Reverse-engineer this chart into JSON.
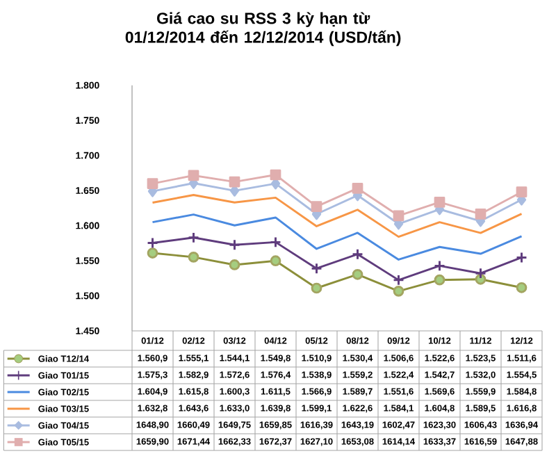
{
  "chart_data": {
    "type": "line",
    "title": "Giá cao su RSS 3 kỳ hạn từ 01/12/2014 đến 12/12/2014 (USD/tấn)",
    "categories": [
      "01/12",
      "02/12",
      "03/12",
      "04/12",
      "05/12",
      "08/12",
      "09/12",
      "10/12",
      "11/12",
      "12/12"
    ],
    "ylim": [
      1450,
      1800
    ],
    "yticks": [
      {
        "value": 1450,
        "label": "1.450"
      },
      {
        "value": 1500,
        "label": "1.500"
      },
      {
        "value": 1550,
        "label": "1.550"
      },
      {
        "value": 1600,
        "label": "1.600"
      },
      {
        "value": 1650,
        "label": "1.650"
      },
      {
        "value": 1700,
        "label": "1.700"
      },
      {
        "value": 1750,
        "label": "1.750"
      },
      {
        "value": 1800,
        "label": "1.800"
      }
    ],
    "legend": "bottom",
    "series": [
      {
        "name": "Giao T12/14",
        "color": "#8c8f3a",
        "marker": "circle",
        "values": [
          1560.9,
          1555.1,
          1544.1,
          1549.8,
          1510.9,
          1530.4,
          1506.6,
          1522.6,
          1523.5,
          1511.6
        ],
        "value_labels": [
          "1.560,9",
          "1.555,1",
          "1.544,1",
          "1.549,8",
          "1.510,9",
          "1.530,4",
          "1.506,6",
          "1.522,6",
          "1.523,5",
          "1.511,6"
        ]
      },
      {
        "name": "Giao T01/15",
        "color": "#5f3c7d",
        "marker": "cross",
        "values": [
          1575.3,
          1582.9,
          1572.6,
          1576.4,
          1538.9,
          1559.2,
          1522.4,
          1542.7,
          1532.0,
          1554.5
        ],
        "value_labels": [
          "1.575,3",
          "1.582,9",
          "1.572,6",
          "1.576,4",
          "1.538,9",
          "1.559,2",
          "1.522,4",
          "1.542,7",
          "1.532,0",
          "1.554,5"
        ]
      },
      {
        "name": "Giao T02/15",
        "color": "#4a8ae0",
        "marker": "none",
        "values": [
          1604.9,
          1615.8,
          1600.3,
          1611.5,
          1566.9,
          1589.7,
          1551.6,
          1569.6,
          1559.9,
          1584.8
        ],
        "value_labels": [
          "1.604,9",
          "1.615,8",
          "1.600,3",
          "1.611,5",
          "1.566,9",
          "1.589,7",
          "1.551,6",
          "1.569,6",
          "1.559,9",
          "1.584,8"
        ]
      },
      {
        "name": "Giao T03/15",
        "color": "#f79646",
        "marker": "none",
        "values": [
          1632.8,
          1643.6,
          1633.0,
          1639.8,
          1599.1,
          1622.6,
          1584.1,
          1604.8,
          1589.5,
          1616.8
        ],
        "value_labels": [
          "1.632,8",
          "1.643,6",
          "1.633,0",
          "1.639,8",
          "1.599,1",
          "1.622,6",
          "1.584,1",
          "1.604,8",
          "1.589,5",
          "1.616,8"
        ]
      },
      {
        "name": "Giao T04/15",
        "color": "#a9bce0",
        "marker": "diamond",
        "values": [
          1648.9,
          1660.49,
          1649.75,
          1659.85,
          1616.39,
          1643.19,
          1602.47,
          1623.3,
          1606.43,
          1636.94
        ],
        "value_labels": [
          "1648,90",
          "1660,49",
          "1649,75",
          "1659,85",
          "1616,39",
          "1643,19",
          "1602,47",
          "1623,30",
          "1606,43",
          "1636,94"
        ]
      },
      {
        "name": "Giao T05/15",
        "color": "#e0aeae",
        "marker": "square",
        "values": [
          1659.9,
          1671.44,
          1662.33,
          1672.37,
          1627.1,
          1653.08,
          1614.14,
          1633.37,
          1616.59,
          1647.88
        ],
        "value_labels": [
          "1659,90",
          "1671,44",
          "1662,33",
          "1672,37",
          "1627,10",
          "1653,08",
          "1614,14",
          "1633,37",
          "1616,59",
          "1647,88"
        ]
      }
    ]
  }
}
